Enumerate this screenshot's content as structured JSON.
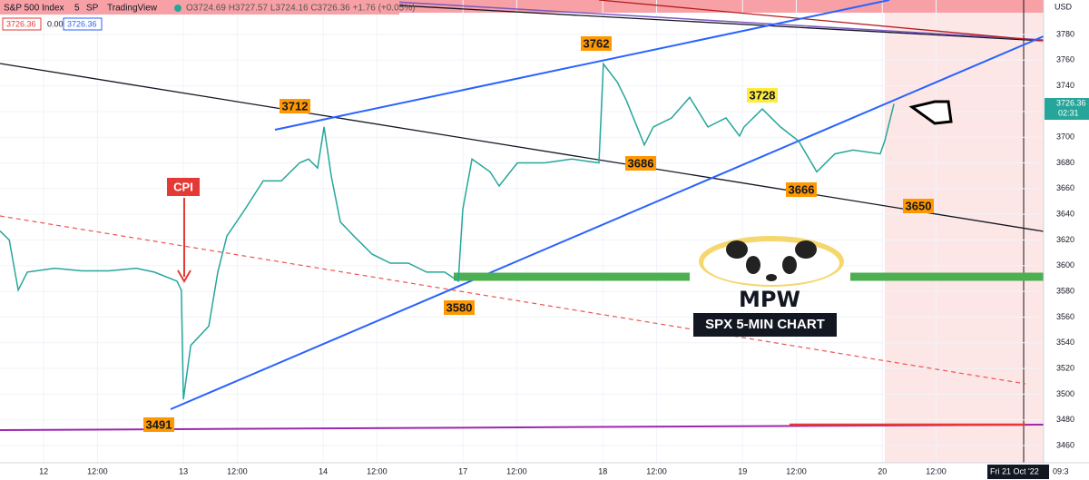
{
  "chart_data": {
    "type": "line",
    "title": "S&P 500 Index",
    "interval": "5",
    "exchange": "SP",
    "brand": "TradingView",
    "ohlc_text": "O3724.69 H3727.57 L3724.16 C3726.36 +1.76 (+0.05%)",
    "badges": [
      "3726.36",
      "0.00",
      "3726.36"
    ],
    "currency": "USD",
    "last_price": "3726.36",
    "countdown": "02:31",
    "cursor_date": "Fri 21 Oct '22",
    "cursor_time": "09:3",
    "annotations": [
      "3712",
      "3762",
      "3728",
      "3686",
      "3666",
      "3650",
      "3580",
      "3491",
      "CPI"
    ],
    "logo_text": "MPW",
    "caption": "SPX 5-MIN CHART",
    "color": "#26a69a",
    "grid": true,
    "x": [
      -2.03,
      -1.6,
      -1.18,
      -0.76,
      0.51,
      1.77,
      3.04,
      4.3,
      5.15,
      6.2,
      6.4,
      6.5,
      6.84,
      7.68,
      8.1,
      8.52,
      9.37,
      10.21,
      11.05,
      11.9,
      12.32,
      12.74,
      13.04,
      13.38,
      13.8,
      14.43,
      15.27,
      16.12,
      16.96,
      17.81,
      18.65,
      19.28,
      19.49,
      19.92,
      20.76,
      21.18,
      22.03,
      23.29,
      24.56,
      25.82,
      26.03,
      26.67,
      27.09,
      27.93,
      28.35,
      29.2,
      30.04,
      30.89,
      31.73,
      32.36,
      32.57,
      33.42,
      34.26,
      35.11,
      35.95,
      36.79,
      37.64,
      38.9,
      39.11,
      39.54
    ],
    "values": [
      3627,
      3620,
      3581,
      3595,
      3598,
      3596,
      3596,
      3598,
      3595,
      3588,
      3581,
      3496,
      3538,
      3553,
      3595,
      3623,
      3644,
      3666,
      3666,
      3680,
      3683,
      3676,
      3708,
      3669,
      3634,
      3623,
      3609,
      3602,
      3602,
      3595,
      3595,
      3588,
      3644,
      3683,
      3673,
      3662,
      3680,
      3680,
      3683,
      3680,
      3757,
      3743,
      3729,
      3694,
      3708,
      3715,
      3731,
      3708,
      3715,
      3701,
      3708,
      3722,
      3708,
      3697,
      3673,
      3687,
      3690,
      3687,
      3697,
      3726
    ],
    "xlim": [
      -2.03,
      46.5
    ],
    "ylim": [
      3446.6,
      3806.8
    ],
    "yticks": [
      3460,
      3480,
      3500,
      3520,
      3540,
      3560,
      3580,
      3600,
      3620,
      3640,
      3660,
      3680,
      3700,
      3720,
      3740,
      3760,
      3780
    ],
    "xticks": [
      {
        "value": 0,
        "label": "12"
      },
      {
        "value": 2.5,
        "label": "12:00"
      },
      {
        "value": 6.5,
        "label": "13"
      },
      {
        "value": 9,
        "label": "12:00"
      },
      {
        "value": 13,
        "label": "14"
      },
      {
        "value": 15.5,
        "label": "12:00"
      },
      {
        "value": 19.5,
        "label": "17"
      },
      {
        "value": 22,
        "label": "12:00"
      },
      {
        "value": 26,
        "label": "18"
      },
      {
        "value": 28.5,
        "label": "12:00"
      },
      {
        "value": 32.5,
        "label": "19"
      },
      {
        "value": 35,
        "label": "12:00"
      },
      {
        "value": 39,
        "label": "20"
      },
      {
        "value": 41.5,
        "label": "12:00"
      }
    ]
  }
}
